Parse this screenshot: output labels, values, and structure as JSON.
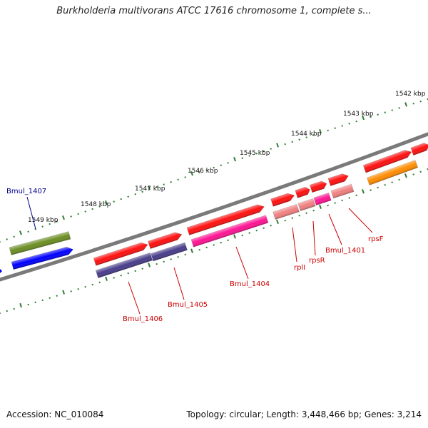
{
  "title": "Burkholderia multivorans ATCC 17616 chromosome 1, complete s...",
  "accession": "Accession: NC_010084",
  "topology": "Topology: circular; Length: 3,448,466 bp; Genes: 3,214",
  "ticks": [
    {
      "label": "1542 kbp"
    },
    {
      "label": "1543 kbp"
    },
    {
      "label": "1544 kbp"
    },
    {
      "label": "1545 kbp"
    },
    {
      "label": "1546 kbp"
    },
    {
      "label": "1547 kbp"
    },
    {
      "label": "1548 kbp"
    },
    {
      "label": "1549 kbp"
    }
  ],
  "genes": [
    {
      "name": "Bmul_1407",
      "color": "#00008b"
    },
    {
      "name": "Bmul_1406",
      "color": "#cc0000"
    },
    {
      "name": "Bmul_1405",
      "color": "#cc0000"
    },
    {
      "name": "Bmul_1404",
      "color": "#cc0000"
    },
    {
      "name": "rplI",
      "color": "#cc0000"
    },
    {
      "name": "rpsR",
      "color": "#cc0000"
    },
    {
      "name": "Bmul_1401",
      "color": "#cc0000"
    },
    {
      "name": "rpsF",
      "color": "#cc0000"
    }
  ],
  "colors": {
    "backbone": "#7a7a7a",
    "tick": "#2e7d32",
    "gene_red": "#ff1010",
    "cog_pink": "#f08080",
    "cog_magenta": "#ff1493",
    "cog_navy": "#483d8b",
    "cog_blue": "#0000ff",
    "cog_olive": "#6b8e23",
    "cog_orange": "#ff8c00"
  }
}
